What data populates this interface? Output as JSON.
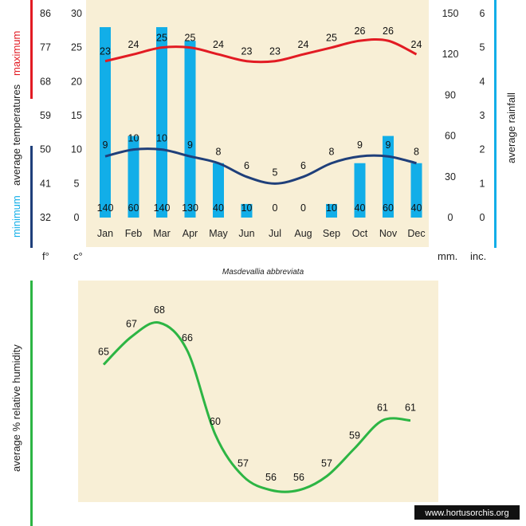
{
  "title": "Masdevallia abbreviata",
  "watermark": "www.hortusorchis.org",
  "colors": {
    "maximum": "#e21b23",
    "minimum": "#1f3f7a",
    "rainfall": "#12aee8",
    "humidity": "#2db544",
    "background": "#f8efd6"
  },
  "axis_titles": {
    "left_average_temperatures": "average  temperatures",
    "left_maximum": "maximum",
    "left_minimum": "minimum",
    "right_rainfall": "average rainfall",
    "humidity": "average %  relative humidity"
  },
  "units": {
    "fahrenheit": "f°",
    "celsius": "c°",
    "mm": "mm.",
    "inches": "inc."
  },
  "chart_data": [
    {
      "type": "bar",
      "name": "temperature-rainfall",
      "categories": [
        "Jan",
        "Feb",
        "Mar",
        "Apr",
        "May",
        "Jun",
        "Jul",
        "Aug",
        "Sep",
        "Oct",
        "Nov",
        "Dec"
      ],
      "temperature_axis_celsius": {
        "ylim": [
          0,
          30
        ],
        "ticks": [
          "0",
          "5",
          "10",
          "15",
          "20",
          "25",
          "30"
        ]
      },
      "temperature_axis_fahrenheit": {
        "ticks": [
          "32",
          "41",
          "50",
          "59",
          "68",
          "77",
          "86"
        ]
      },
      "rainfall_axis_mm": {
        "ylim": [
          0,
          150
        ],
        "ticks": [
          "0",
          "30",
          "60",
          "90",
          "120",
          "150"
        ]
      },
      "rainfall_axis_inches": {
        "ticks": [
          "0",
          "1",
          "2",
          "3",
          "4",
          "5",
          "6"
        ]
      },
      "series": [
        {
          "name": "maximum",
          "type": "line",
          "axis": "temperature",
          "values": [
            23,
            24,
            25,
            25,
            24,
            23,
            23,
            24,
            25,
            26,
            26,
            24
          ]
        },
        {
          "name": "minimum",
          "type": "line",
          "axis": "temperature",
          "values": [
            9,
            10,
            10,
            9,
            8,
            6,
            5,
            6,
            8,
            9,
            9,
            8
          ]
        },
        {
          "name": "average rainfall",
          "type": "bar",
          "axis": "rainfall",
          "values": [
            140,
            60,
            140,
            130,
            40,
            10,
            0,
            0,
            10,
            40,
            60,
            40
          ]
        }
      ],
      "grid": false
    },
    {
      "type": "line",
      "name": "relative-humidity",
      "categories": [
        "Jan",
        "Feb",
        "Mar",
        "Apr",
        "May",
        "Jun",
        "Jul",
        "Aug",
        "Sep",
        "Oct",
        "Nov",
        "Dec"
      ],
      "series": [
        {
          "name": "average % relative humidity",
          "values": [
            65,
            67,
            68,
            66,
            60,
            57,
            56,
            56,
            57,
            59,
            61,
            61
          ]
        }
      ],
      "ylim": [
        52,
        72
      ],
      "grid": false
    }
  ]
}
